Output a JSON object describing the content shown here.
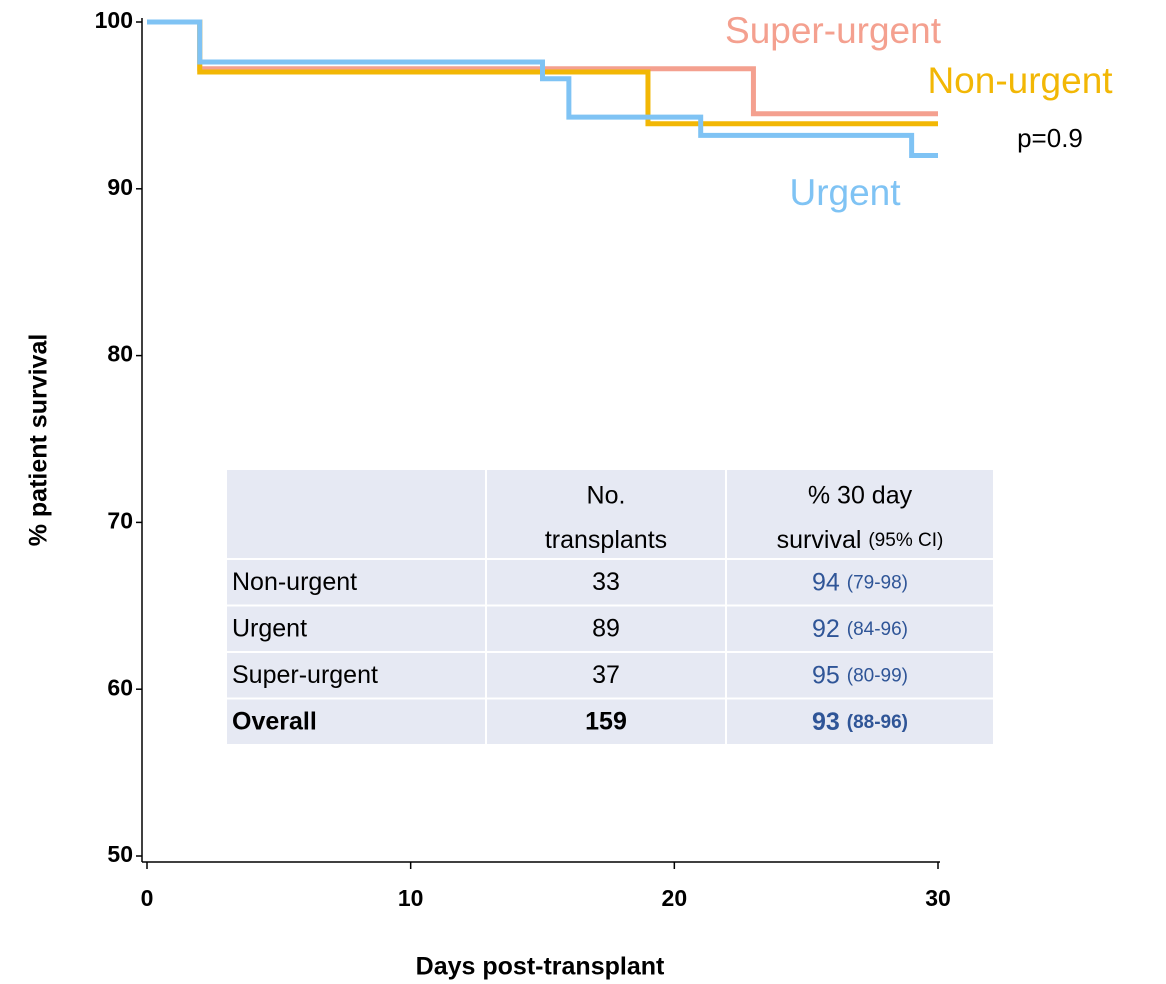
{
  "chart_data": {
    "type": "step",
    "xlabel": "Days post-transplant",
    "ylabel": "% patient survival",
    "xlim": [
      0,
      30
    ],
    "xticks": [
      0,
      10,
      20,
      30
    ],
    "ylim": [
      50,
      100
    ],
    "yticks": [
      50,
      60,
      70,
      80,
      90,
      100
    ],
    "series": [
      {
        "name": "Super-urgent",
        "color": "#f4a08f",
        "x": [
          0,
          2,
          23,
          30
        ],
        "values": [
          100,
          97.2,
          94.5,
          94.5
        ]
      },
      {
        "name": "Non-urgent",
        "color": "#f2b705",
        "x": [
          0,
          2,
          19,
          30
        ],
        "values": [
          100,
          97.0,
          93.9,
          93.9
        ]
      },
      {
        "name": "Urgent",
        "color": "#7fc3f4",
        "x": [
          0,
          2,
          15,
          16,
          21,
          29,
          30
        ],
        "values": [
          100,
          97.6,
          96.6,
          94.3,
          93.2,
          92.0,
          92.0
        ]
      }
    ],
    "annotations": [
      "p=0.9"
    ],
    "table": {
      "columns": [
        {
          "line1": "No.",
          "line2": "transplants"
        },
        {
          "line1": "% 30 day",
          "line2": "survival",
          "note": "(95% CI)"
        }
      ],
      "rows": [
        {
          "label": "Non-urgent",
          "n": 33,
          "survival": 94,
          "ci": "(79-98)"
        },
        {
          "label": "Urgent",
          "n": 89,
          "survival": 92,
          "ci": "(84-96)"
        },
        {
          "label": "Super-urgent",
          "n": 37,
          "survival": 95,
          "ci": "(80-99)"
        }
      ],
      "total": {
        "label": "Overall",
        "n": 159,
        "survival": 93,
        "ci": "(88-96)"
      }
    }
  }
}
